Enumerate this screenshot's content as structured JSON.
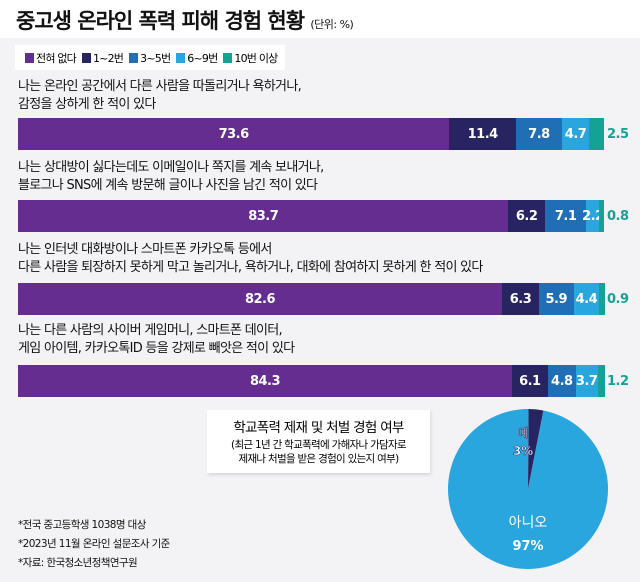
{
  "header": {
    "title": "중고생 온라인 폭력 피해 경험 현황",
    "unit": "(단위: %)"
  },
  "chart_data": [
    {
      "type": "bar",
      "orientation": "horizontal",
      "stacked": true,
      "legend": {
        "placement": "top-left",
        "entries": [
          "전혀 없다",
          "1~2번",
          "3~5번",
          "6~9번",
          "10번 이상"
        ]
      },
      "colors": [
        "#652d90",
        "#272461",
        "#1f6eb6",
        "#2aa6df",
        "#14a295"
      ],
      "categories": [
        "나는 온라인 공간에서 다른 사람을 따돌리거나 욕하거나, 감정을 상하게 한 적이 있다",
        "나는 상대방이 싫다는데도 이메일이나 쪽지를 계속 보내거나, 블로그나 SNS에 계속 방문해 글이나 사진을 남긴 적이 있다",
        "나는 인터넷 대화방이나 스마트폰 카카오톡 등에서 다른 사람을 퇴장하지 못하게 막고 놀리거나, 욕하거나, 대화에 참여하지 못하게 한 적이 있다",
        "나는 다른 사람의 사이버 게임머니, 스마트폰 데이터, 게임 아이템, 카카오톡ID 등을 강제로 빼앗은 적이 있다"
      ],
      "category_lines": [
        [
          "나는 온라인 공간에서 다른 사람을 따돌리거나 욕하거나,",
          "감정을 상하게 한 적이 있다"
        ],
        [
          "나는 상대방이 싫다는데도 이메일이나 쪽지를 계속 보내거나,",
          "블로그나 SNS에 계속 방문해 글이나 사진을 남긴 적이 있다"
        ],
        [
          "나는 인터넷 대화방이나 스마트폰 카카오톡 등에서",
          "다른 사람을 퇴장하지 못하게 막고 놀리거나, 욕하거나, 대화에 참여하지 못하게 한 적이 있다"
        ],
        [
          "나는 다른 사람의 사이버 게임머니, 스마트폰 데이터,",
          "게임 아이템, 카카오톡ID 등을 강제로 빼앗은 적이 있다"
        ]
      ],
      "series": [
        {
          "name": "전혀 없다",
          "values": [
            73.6,
            83.7,
            82.6,
            84.3
          ]
        },
        {
          "name": "1~2번",
          "values": [
            11.4,
            6.2,
            6.3,
            6.1
          ]
        },
        {
          "name": "3~5번",
          "values": [
            7.8,
            7.1,
            5.9,
            4.8
          ]
        },
        {
          "name": "6~9번",
          "values": [
            4.7,
            2.2,
            4.4,
            3.7
          ]
        },
        {
          "name": "10번 이상",
          "values": [
            2.5,
            0.8,
            0.9,
            1.2
          ]
        }
      ],
      "xlim": [
        0,
        100
      ]
    },
    {
      "type": "pie",
      "title": "학교폭력 제재 및 처벌 경험 여부",
      "subtitle": [
        "(최근 1년 간 학교폭력에 가해자나 가담자로",
        "제재나 처벌을 받은 경험이 있는지 여부)"
      ],
      "slices": [
        {
          "label": "예",
          "value": 3,
          "value_label": "3%",
          "color": "#272461"
        },
        {
          "label": "아니오",
          "value": 97,
          "value_label": "97%",
          "color": "#2aa6df"
        }
      ]
    }
  ],
  "footnotes": [
    "*전국 중고등학생 1038명 대상",
    "*2023년 11월 온라인 설문조사 기준",
    "*자료: 한국청소년정책연구원"
  ]
}
